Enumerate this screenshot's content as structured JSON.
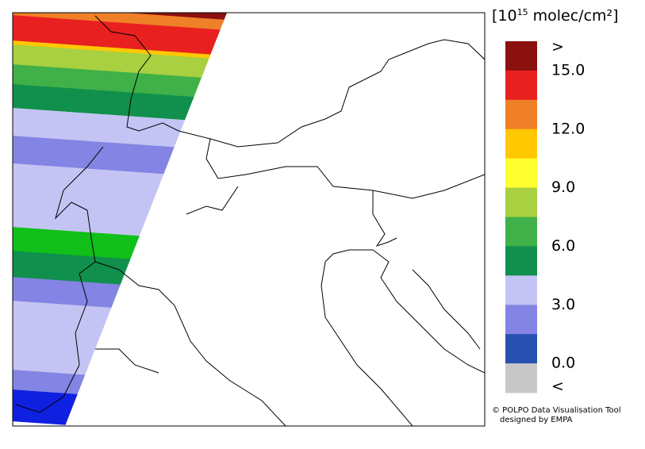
{
  "legend": {
    "unit": {
      "base": "[10",
      "exponent": "15",
      "rest": " molec/cm²]"
    },
    "colors": [
      "#8b1010",
      "#e82020",
      "#f08028",
      "#ffc800",
      "#ffff30",
      "#a8d040",
      "#40b048",
      "#10904c",
      "#c4c4f4",
      "#8484e4",
      "#2850b0",
      "#c8c8c8"
    ],
    "labels": [
      ">",
      "15.0",
      "12.0",
      "9.0",
      "6.0",
      "3.0",
      "0.0",
      "<"
    ]
  },
  "footer": {
    "line1": "© POLPO Data Visualisation Tool",
    "line2": "designed by EMPA"
  }
}
